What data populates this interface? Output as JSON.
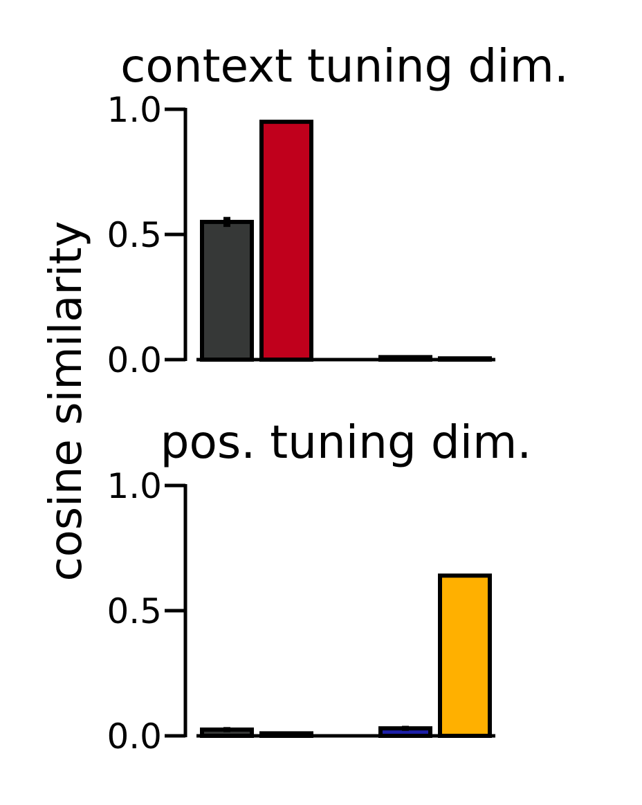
{
  "ylabel": "cosine similarity",
  "chart_data": [
    {
      "type": "bar",
      "title": "context tuning dim.",
      "ylabel": "cosine similarity",
      "ylim": [
        0,
        1.0
      ],
      "yticks": [
        "0.0",
        "0.5",
        "1.0"
      ],
      "categories": [
        "",
        "",
        "",
        "",
        ""
      ],
      "values": [
        0.55,
        0.95,
        0.0,
        0.01,
        0.005
      ],
      "errors": [
        0.02,
        0.0,
        0.0,
        0.0,
        0.0
      ],
      "colors": [
        "#363837",
        "#c0001c",
        "#1d1fa8",
        "#1d1fa8",
        "#ffb000"
      ],
      "grid": false,
      "legend": "none"
    },
    {
      "type": "bar",
      "title": "pos. tuning dim.",
      "ylabel": "cosine similarity",
      "ylim": [
        0,
        1.0
      ],
      "yticks": [
        "0.0",
        "0.5",
        "1.0"
      ],
      "categories": [
        "",
        "",
        "",
        "",
        ""
      ],
      "values": [
        0.025,
        0.01,
        0.0,
        0.03,
        0.64
      ],
      "errors": [
        0.01,
        0.0,
        0.0,
        0.01,
        0.0
      ],
      "colors": [
        "#363837",
        "#c0001c",
        "#1d1fa8",
        "#1d1fa8",
        "#ffb000"
      ],
      "grid": false,
      "legend": "none"
    }
  ]
}
